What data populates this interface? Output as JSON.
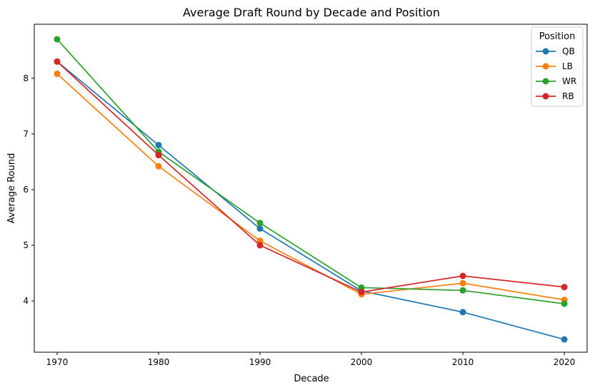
{
  "chart_data": {
    "type": "line",
    "title": "Average Draft Round by Decade and Position",
    "xlabel": "Decade",
    "ylabel": "Average Round",
    "x": [
      1970,
      1980,
      1990,
      2000,
      2010,
      2020
    ],
    "x_ticks": [
      "1970",
      "1980",
      "1990",
      "2000",
      "2010",
      "2020"
    ],
    "y_ticks": [
      "4",
      "5",
      "6",
      "7",
      "8"
    ],
    "ylim": [
      3.08,
      8.97
    ],
    "legend": {
      "title": "Position",
      "placement": "top-right"
    },
    "markers": true,
    "grid": false,
    "series": [
      {
        "name": "QB",
        "color": "#1f77b4",
        "values": [
          8.3,
          6.8,
          5.3,
          4.18,
          3.8,
          3.31
        ]
      },
      {
        "name": "LB",
        "color": "#ff7f0e",
        "values": [
          8.08,
          6.42,
          5.08,
          4.12,
          4.32,
          4.02
        ]
      },
      {
        "name": "WR",
        "color": "#2ca02c",
        "values": [
          8.7,
          6.68,
          5.4,
          4.24,
          4.19,
          3.95
        ]
      },
      {
        "name": "RB",
        "color": "#d62728",
        "values": [
          8.3,
          6.62,
          5.0,
          4.16,
          4.45,
          4.25
        ]
      }
    ]
  }
}
